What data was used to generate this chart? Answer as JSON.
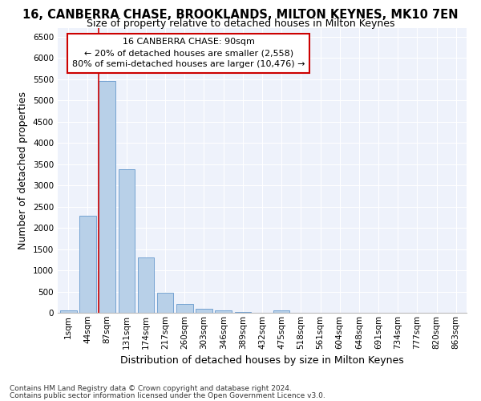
{
  "title": "16, CANBERRA CHASE, BROOKLANDS, MILTON KEYNES, MK10 7EN",
  "subtitle": "Size of property relative to detached houses in Milton Keynes",
  "xlabel": "Distribution of detached houses by size in Milton Keynes",
  "ylabel": "Number of detached properties",
  "footnote1": "Contains HM Land Registry data © Crown copyright and database right 2024.",
  "footnote2": "Contains public sector information licensed under the Open Government Licence v3.0.",
  "annotation_title": "16 CANBERRA CHASE: 90sqm",
  "annotation_line2": "← 20% of detached houses are smaller (2,558)",
  "annotation_line3": "80% of semi-detached houses are larger (10,476) →",
  "bar_color": "#b8d0e8",
  "bar_edge_color": "#6699cc",
  "vline_color": "#cc0000",
  "annotation_box_edgecolor": "#cc0000",
  "bg_color": "#eef2fb",
  "grid_color": "#ffffff",
  "categories": [
    "1sqm",
    "44sqm",
    "87sqm",
    "131sqm",
    "174sqm",
    "217sqm",
    "260sqm",
    "303sqm",
    "346sqm",
    "389sqm",
    "432sqm",
    "475sqm",
    "518sqm",
    "561sqm",
    "604sqm",
    "648sqm",
    "691sqm",
    "734sqm",
    "777sqm",
    "820sqm",
    "863sqm"
  ],
  "values": [
    55,
    2280,
    5450,
    3380,
    1310,
    480,
    215,
    90,
    50,
    10,
    0,
    50,
    0,
    0,
    0,
    0,
    0,
    0,
    0,
    0,
    0
  ],
  "ylim": [
    0,
    6700
  ],
  "yticks": [
    0,
    500,
    1000,
    1500,
    2000,
    2500,
    3000,
    3500,
    4000,
    4500,
    5000,
    5500,
    6000,
    6500
  ],
  "vline_x_index": 1.575,
  "title_fontsize": 10.5,
  "subtitle_fontsize": 9,
  "axis_label_fontsize": 9,
  "tick_fontsize": 7.5,
  "annotation_fontsize": 8,
  "footnote_fontsize": 6.5
}
